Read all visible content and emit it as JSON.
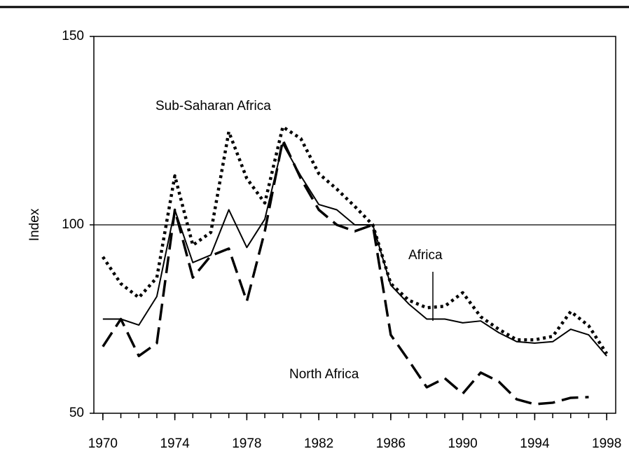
{
  "chart_data": {
    "type": "line",
    "y_label": "Index",
    "x": [
      1970,
      1971,
      1972,
      1973,
      1974,
      1975,
      1976,
      1977,
      1978,
      1979,
      1980,
      1981,
      1982,
      1983,
      1984,
      1985,
      1986,
      1987,
      1988,
      1989,
      1990,
      1991,
      1992,
      1993,
      1994,
      1995,
      1996,
      1997,
      1998
    ],
    "series": [
      {
        "name": "Africa",
        "color": "#000000",
        "style": "solid",
        "values": [
          75,
          75,
          73.4,
          81,
          104,
          90,
          92,
          104,
          94,
          101.5,
          121.5,
          113,
          105.4,
          104,
          100,
          100,
          84,
          79,
          75,
          75,
          74,
          74.5,
          71.4,
          69,
          68.6,
          69,
          72.3,
          70.8,
          65.2
        ]
      },
      {
        "name": "Sub-Saharan Africa",
        "color": "#000000",
        "style": "dotted",
        "values": [
          91.5,
          84.4,
          80.7,
          86,
          113,
          94.6,
          98,
          124.7,
          112.3,
          105.8,
          126,
          122.9,
          113.6,
          109.5,
          104.9,
          100,
          84.4,
          80,
          78,
          78.4,
          82,
          75.6,
          72.3,
          69.5,
          69.5,
          70.4,
          77,
          73.2,
          65.8
        ]
      },
      {
        "name": "North Africa",
        "color": "#000000",
        "style": "dashed",
        "values": [
          67.7,
          75,
          65.2,
          68.6,
          104,
          86,
          91.8,
          93.7,
          79.7,
          98.3,
          122.5,
          112.3,
          104,
          100,
          98.3,
          100,
          70.8,
          64,
          56.9,
          59.3,
          55.2,
          60.8,
          58.4,
          53.7,
          52.4,
          52.8,
          54.1,
          54.3,
          null
        ]
      }
    ],
    "xlim": [
      1969.5,
      1998.5
    ],
    "xticks": [
      1970,
      1974,
      1978,
      1982,
      1986,
      1990,
      1994,
      1998
    ],
    "ylim": [
      50,
      150
    ],
    "yticks": [
      50,
      100,
      150
    ],
    "reference_line": 100
  }
}
